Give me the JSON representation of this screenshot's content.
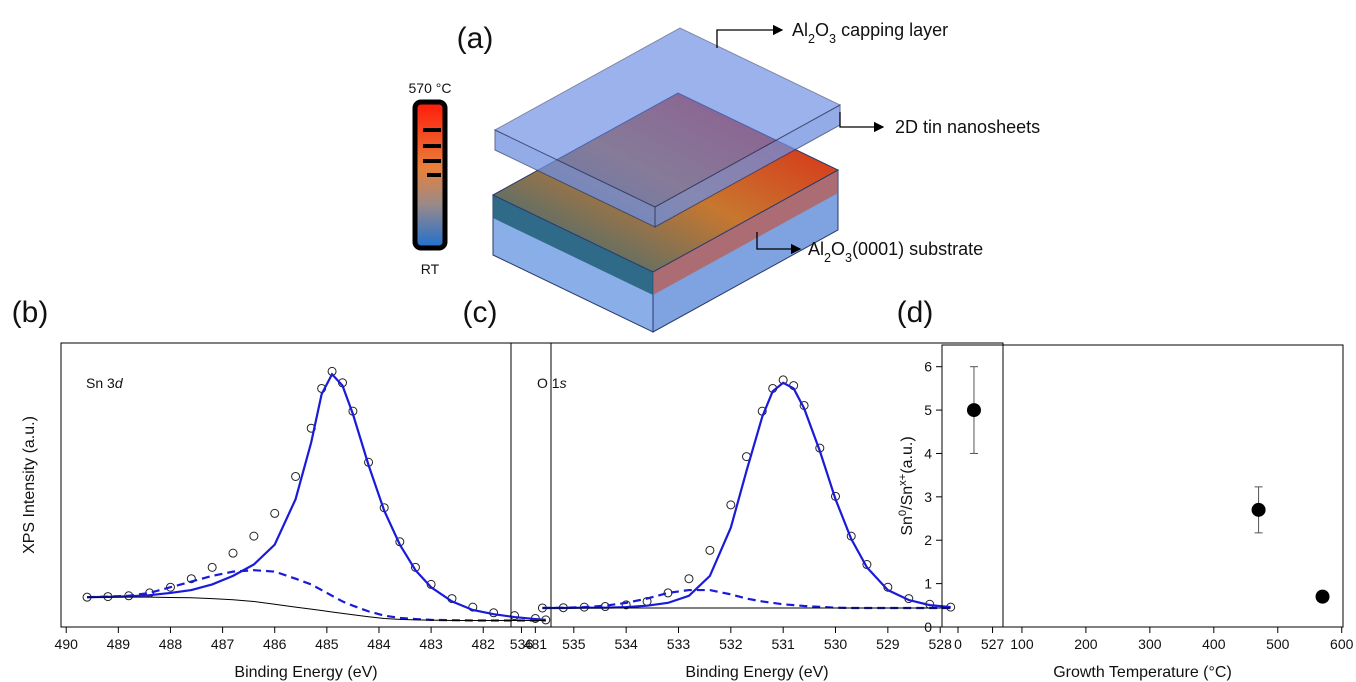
{
  "figure": {
    "panel_label": "(a)",
    "thermometer": {
      "top": "570 °C",
      "bottom": "RT"
    },
    "labels": [
      [
        {
          "text": "Al"
        },
        {
          "text": "2",
          "sub": true
        },
        {
          "text": "O"
        },
        {
          "text": "3",
          "sub": true
        },
        {
          "text": " capping layer"
        }
      ],
      [
        {
          "text": "2D tin nanosheets"
        }
      ],
      [
        {
          "text": "Al"
        },
        {
          "text": "2",
          "sub": true
        },
        {
          "text": "O"
        },
        {
          "text": "3",
          "sub": true
        },
        {
          "text": "(0001) substrate"
        }
      ]
    ]
  },
  "chart_data": [
    {
      "type": "line",
      "panel_label": "(b)",
      "annotation": [
        {
          "text": "Sn 3"
        },
        {
          "text": "d",
          "italic": true
        }
      ],
      "xlabel": "Binding Energy (eV)",
      "ylabel": "XPS Intensity (a.u.)",
      "xlim": [
        490.1,
        480.7
      ],
      "xticks": [
        490,
        489,
        488,
        487,
        486,
        485,
        484,
        483,
        482,
        481
      ],
      "ylim": [
        0,
        1
      ],
      "x": [
        489.6,
        489.2,
        488.8,
        488.4,
        488.0,
        487.6,
        487.2,
        486.8,
        486.4,
        486.0,
        485.6,
        485.3,
        485.1,
        484.9,
        484.7,
        484.5,
        484.2,
        483.9,
        483.6,
        483.3,
        483.0,
        482.6,
        482.2,
        481.8,
        481.4,
        481.0,
        480.8
      ],
      "series": [
        {
          "style": "circles",
          "color": "#222222",
          "values": [
            0.105,
            0.107,
            0.11,
            0.12,
            0.14,
            0.17,
            0.21,
            0.26,
            0.32,
            0.4,
            0.53,
            0.7,
            0.84,
            0.9,
            0.86,
            0.76,
            0.58,
            0.42,
            0.3,
            0.21,
            0.15,
            0.1,
            0.07,
            0.05,
            0.04,
            0.03,
            0.025
          ]
        },
        {
          "style": "solid",
          "color": "#1a1adb",
          "values": [
            0.105,
            0.106,
            0.108,
            0.112,
            0.12,
            0.13,
            0.15,
            0.18,
            0.22,
            0.29,
            0.45,
            0.65,
            0.82,
            0.89,
            0.85,
            0.75,
            0.57,
            0.41,
            0.29,
            0.2,
            0.14,
            0.09,
            0.06,
            0.045,
            0.035,
            0.028,
            0.025
          ]
        },
        {
          "style": "dashed",
          "color": "#1a1adb",
          "values": [
            0.105,
            0.107,
            0.11,
            0.12,
            0.14,
            0.16,
            0.18,
            0.195,
            0.2,
            0.195,
            0.17,
            0.15,
            0.13,
            0.11,
            0.09,
            0.075,
            0.055,
            0.04,
            0.032,
            0.028,
            0.025,
            0.024,
            0.023,
            0.023,
            0.023,
            0.023,
            0.023
          ]
        },
        {
          "style": "thin",
          "color": "#000000",
          "values": [
            0.105,
            0.105,
            0.105,
            0.105,
            0.104,
            0.103,
            0.1,
            0.096,
            0.09,
            0.08,
            0.07,
            0.063,
            0.058,
            0.053,
            0.048,
            0.043,
            0.036,
            0.03,
            0.027,
            0.025,
            0.024,
            0.023,
            0.023,
            0.023,
            0.023,
            0.023,
            0.023
          ]
        }
      ]
    },
    {
      "type": "line",
      "panel_label": "(c)",
      "annotation": [
        {
          "text": "O 1"
        },
        {
          "text": "s",
          "italic": true
        }
      ],
      "xlabel": "Binding Energy (eV)",
      "xlim": [
        536.2,
        526.8
      ],
      "xticks": [
        536,
        535,
        534,
        533,
        532,
        531,
        530,
        529,
        528,
        527
      ],
      "ylim": [
        0,
        1
      ],
      "x": [
        535.6,
        535.2,
        534.8,
        534.4,
        534.0,
        533.6,
        533.2,
        532.8,
        532.4,
        532.0,
        531.7,
        531.4,
        531.2,
        531.0,
        530.8,
        530.6,
        530.3,
        530.0,
        529.7,
        529.4,
        529.0,
        528.6,
        528.2,
        527.8
      ],
      "series": [
        {
          "style": "circles",
          "color": "#222222",
          "values": [
            0.067,
            0.068,
            0.07,
            0.072,
            0.078,
            0.09,
            0.12,
            0.17,
            0.27,
            0.43,
            0.6,
            0.76,
            0.84,
            0.87,
            0.85,
            0.78,
            0.63,
            0.46,
            0.32,
            0.22,
            0.14,
            0.1,
            0.08,
            0.07
          ]
        },
        {
          "style": "solid",
          "color": "#1a1adb",
          "values": [
            0.067,
            0.067,
            0.068,
            0.068,
            0.07,
            0.075,
            0.085,
            0.11,
            0.18,
            0.35,
            0.55,
            0.74,
            0.83,
            0.86,
            0.84,
            0.77,
            0.62,
            0.45,
            0.31,
            0.21,
            0.13,
            0.095,
            0.077,
            0.07
          ]
        },
        {
          "style": "dashed",
          "color": "#1a1adb",
          "values": [
            0.067,
            0.068,
            0.07,
            0.075,
            0.085,
            0.1,
            0.12,
            0.13,
            0.13,
            0.115,
            0.1,
            0.09,
            0.085,
            0.08,
            0.077,
            0.074,
            0.071,
            0.068,
            0.067,
            0.067,
            0.067,
            0.067,
            0.067,
            0.067
          ]
        },
        {
          "style": "thin",
          "color": "#000000",
          "values": [
            0.067,
            0.067,
            0.067,
            0.067,
            0.067,
            0.067,
            0.067,
            0.067,
            0.067,
            0.067,
            0.067,
            0.067,
            0.067,
            0.067,
            0.067,
            0.067,
            0.067,
            0.067,
            0.067,
            0.067,
            0.067,
            0.067,
            0.067,
            0.067
          ]
        }
      ]
    },
    {
      "type": "scatter",
      "panel_label": "(d)",
      "xlabel": "Growth Temperature (°C)",
      "ylabel": [
        {
          "text": "Sn"
        },
        {
          "text": "0",
          "sup": true
        },
        {
          "text": "/Sn"
        },
        {
          "text": "x+",
          "sup": true
        },
        {
          "text": "(a.u.)"
        }
      ],
      "xlim": [
        -25,
        602
      ],
      "xticks": [
        0,
        100,
        200,
        300,
        400,
        500,
        600
      ],
      "ylim": [
        0,
        6.5
      ],
      "yticks": [
        0,
        1,
        2,
        3,
        4,
        5,
        6
      ],
      "color": "#000000",
      "x": [
        25,
        470,
        570
      ],
      "values": [
        5,
        2.7,
        0.7
      ],
      "errors": [
        1,
        0.53,
        null
      ]
    }
  ]
}
